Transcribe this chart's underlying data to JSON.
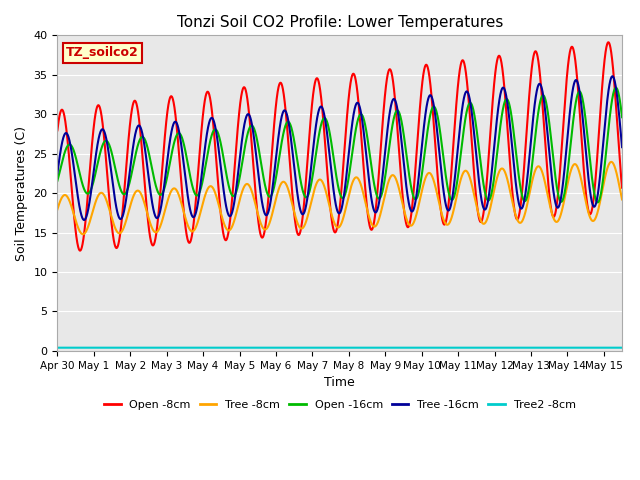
{
  "title": "Tonzi Soil CO2 Profile: Lower Temperatures",
  "xlabel": "Time",
  "ylabel": "Soil Temperatures (C)",
  "xlim_days": [
    0,
    15.5
  ],
  "ylim": [
    0,
    40
  ],
  "yticks": [
    0,
    5,
    10,
    15,
    20,
    25,
    30,
    35,
    40
  ],
  "xtick_labels": [
    "Apr 30",
    "May 1",
    "May 2",
    "May 3",
    "May 4",
    "May 5",
    "May 6",
    "May 7",
    "May 8",
    "May 9",
    "May 10",
    "May 11",
    "May 12",
    "May 13",
    "May 14",
    "May 15"
  ],
  "xtick_positions": [
    0,
    1,
    2,
    3,
    4,
    5,
    6,
    7,
    8,
    9,
    10,
    11,
    12,
    13,
    14,
    15
  ],
  "colors": {
    "open_8cm": "#FF0000",
    "tree_8cm": "#FFA500",
    "open_16cm": "#00BB00",
    "tree_16cm": "#000099",
    "tree2_8cm": "#00CCCC"
  },
  "labels": {
    "open_8cm": "Open -8cm",
    "tree_8cm": "Tree -8cm",
    "open_16cm": "Open -16cm",
    "tree_16cm": "Tree -16cm",
    "tree2_8cm": "Tree2 -8cm"
  },
  "plot_bg_color": "#E8E8E8",
  "label_box_text": "TZ_soilco2",
  "label_box_bg": "#FFFFCC",
  "label_box_edge": "#CC0000"
}
